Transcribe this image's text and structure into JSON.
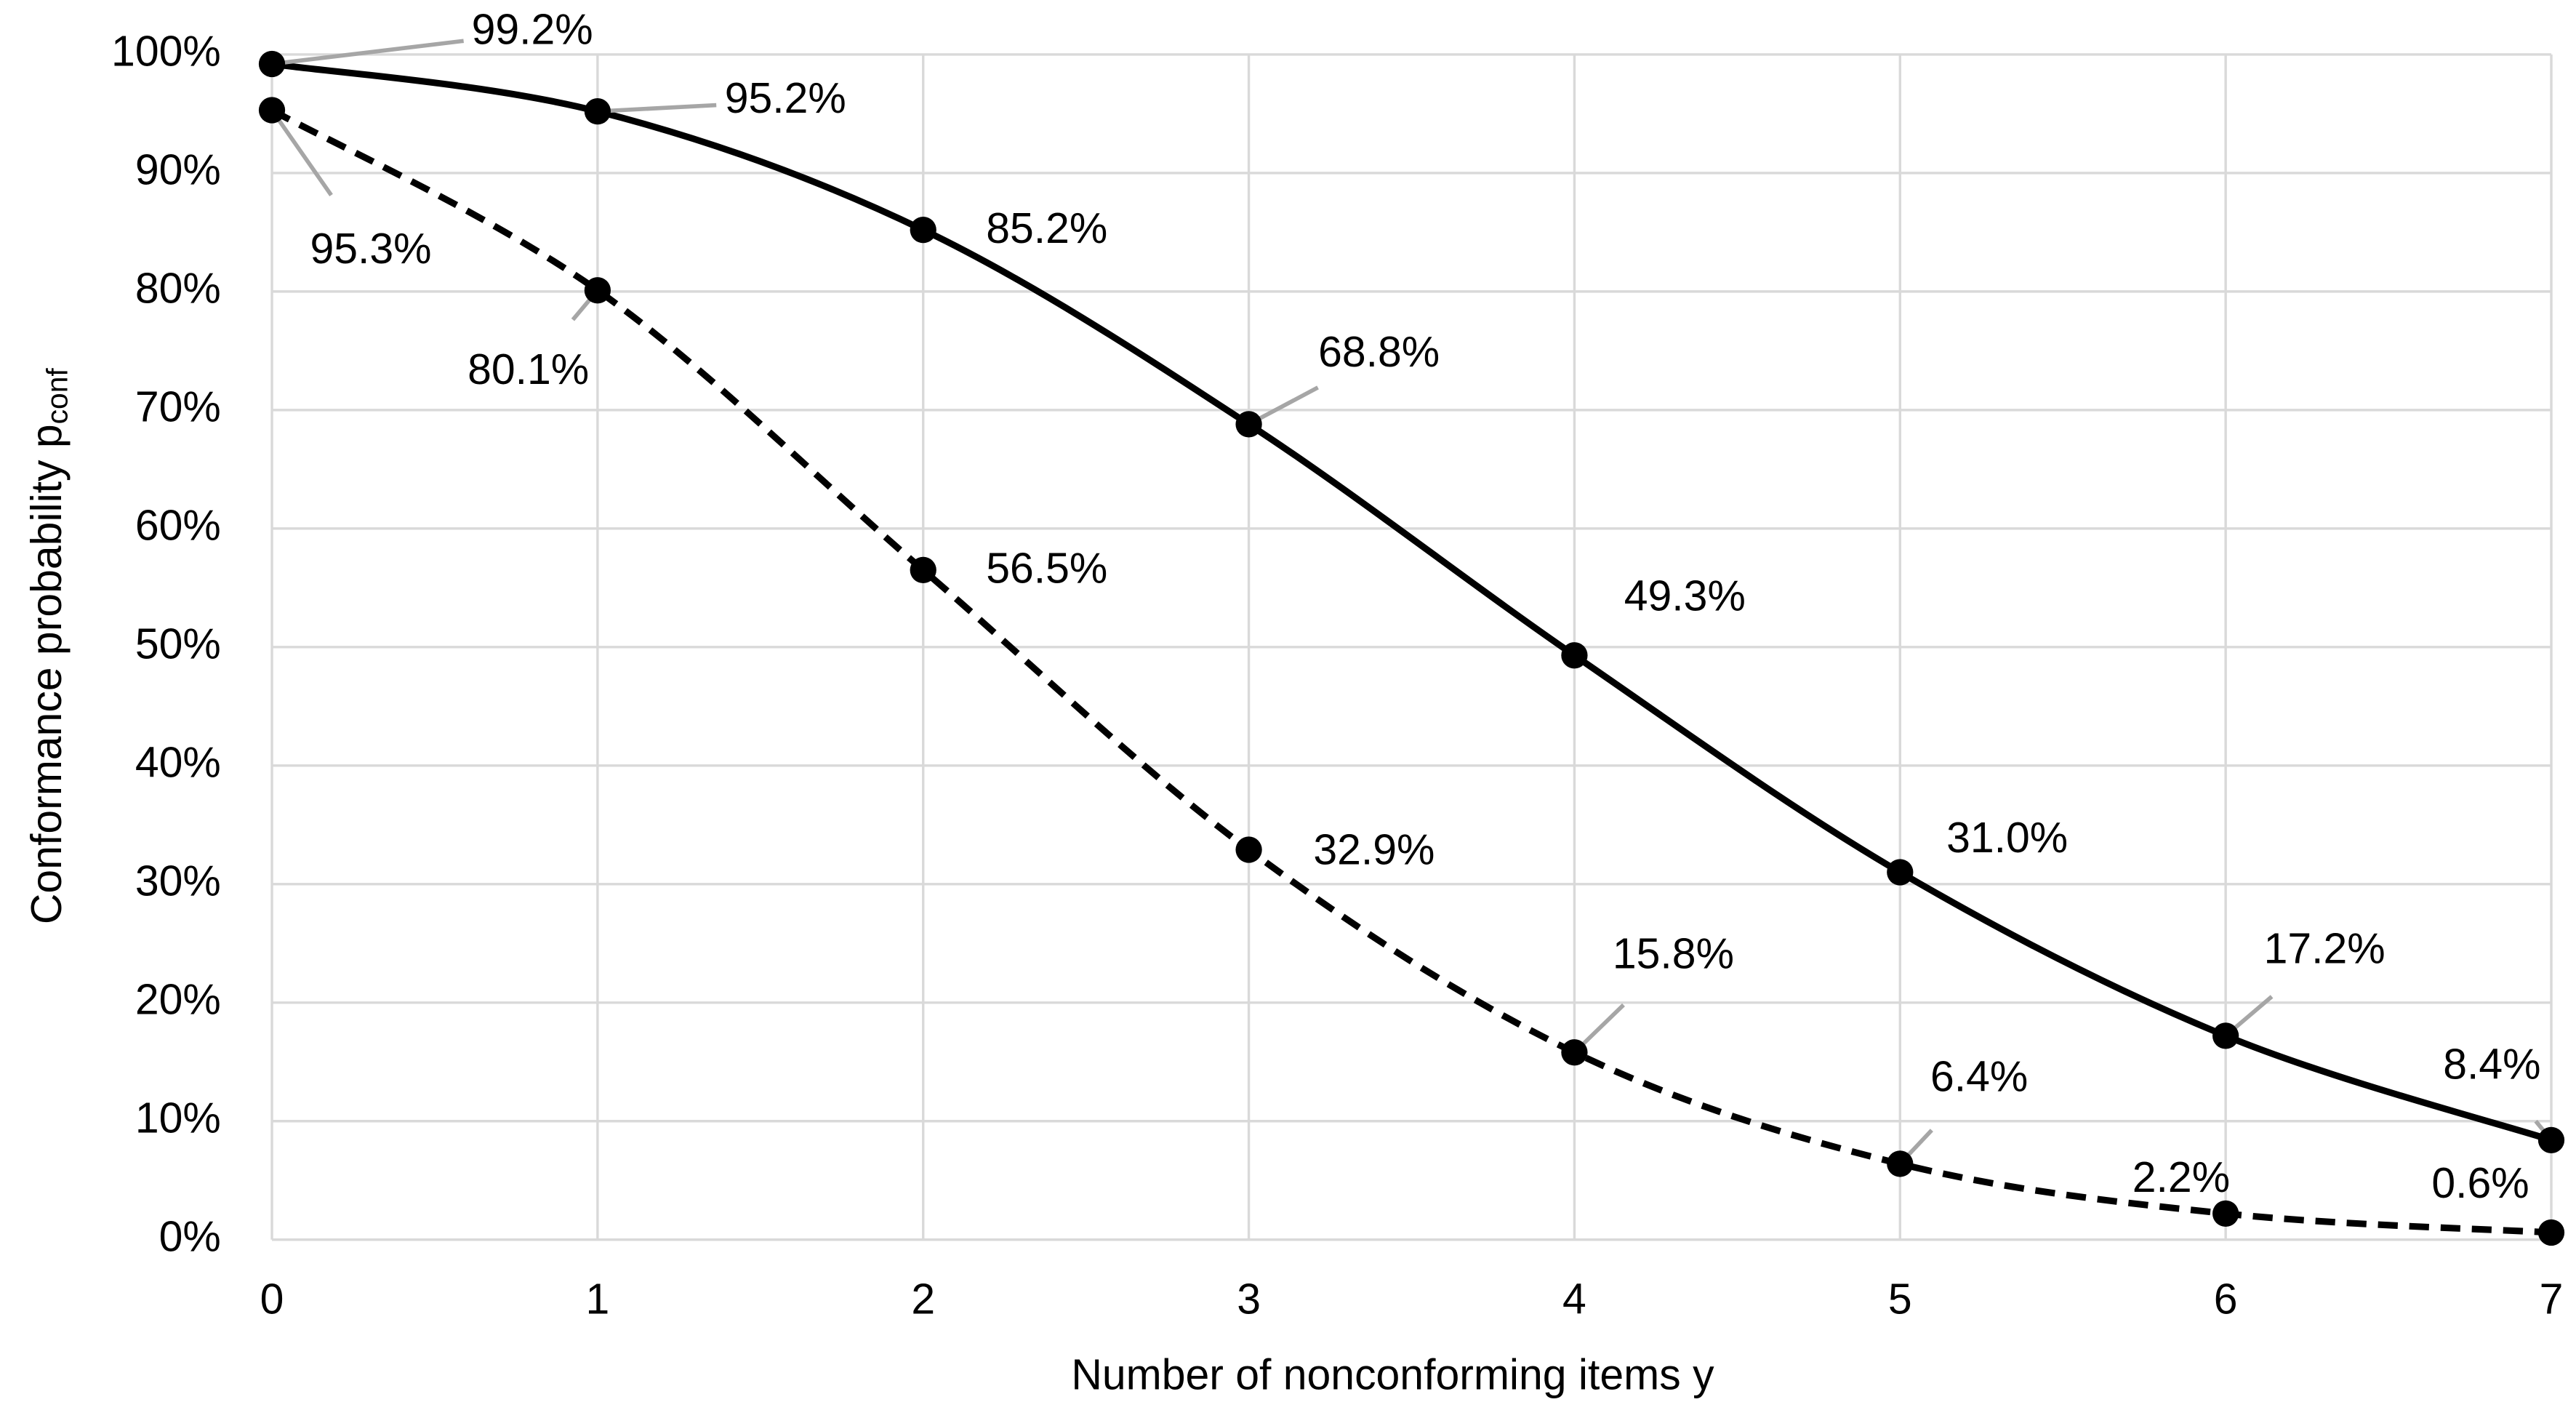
{
  "chart_data": {
    "type": "line",
    "x_label": "Number of nonconforming items y",
    "y_label": "Conformance probability p",
    "y_label_subscript": "conf",
    "x": [
      0,
      1,
      2,
      3,
      4,
      5,
      6,
      7
    ],
    "series": [
      {
        "color": "#000000",
        "dashed": false,
        "values": [
          99.2,
          95.2,
          85.2,
          68.8,
          49.3,
          31.0,
          17.2,
          8.4
        ],
        "value_labels": [
          "99.2%",
          "95.2%",
          "85.2%",
          "68.8%",
          "49.3%",
          "31.0%",
          "17.2%",
          "8.4%"
        ]
      },
      {
        "color": "#000000",
        "dashed": true,
        "values": [
          95.3,
          80.1,
          56.5,
          32.9,
          15.8,
          6.4,
          2.2,
          0.6
        ],
        "value_labels": [
          "95.3%",
          "80.1%",
          "56.5%",
          "32.9%",
          "15.8%",
          "6.4%",
          "2.2%",
          "0.6%"
        ]
      }
    ],
    "xlim": [
      0,
      7
    ],
    "xticks": [
      0,
      1,
      2,
      3,
      4,
      5,
      6,
      7
    ],
    "ylim": [
      0,
      100
    ],
    "yticks": [
      {
        "value": 0,
        "label": "0%"
      },
      {
        "value": 10,
        "label": "10%"
      },
      {
        "value": 20,
        "label": "20%"
      },
      {
        "value": 30,
        "label": "30%"
      },
      {
        "value": 40,
        "label": "40%"
      },
      {
        "value": 50,
        "label": "50%"
      },
      {
        "value": 60,
        "label": "60%"
      },
      {
        "value": 70,
        "label": "70%"
      },
      {
        "value": 80,
        "label": "80%"
      },
      {
        "value": 90,
        "label": "90%"
      },
      {
        "value": 100,
        "label": "100%"
      }
    ],
    "grid": true,
    "smooth": true
  }
}
